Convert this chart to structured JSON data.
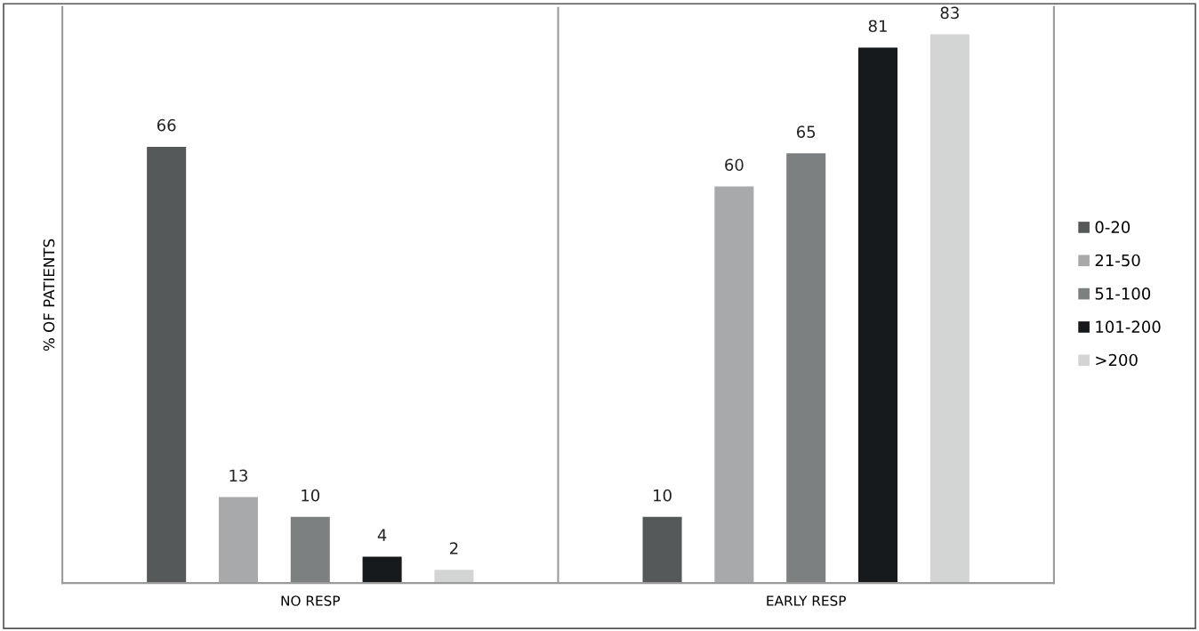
{
  "chart_data": {
    "type": "bar",
    "ylabel": "% OF PATIENTS",
    "categories": [
      "NO RESP",
      "EARLY RESP"
    ],
    "series": [
      {
        "name": "0-20",
        "color": "#555859",
        "values": [
          66,
          10
        ]
      },
      {
        "name": "21-50",
        "color": "#a7a9aa",
        "values": [
          13,
          60
        ]
      },
      {
        "name": "51-100",
        "color": "#7d8080",
        "values": [
          10,
          65
        ]
      },
      {
        "name": "101-200",
        "color": "#16191b",
        "values": [
          4,
          81
        ]
      },
      {
        "name": ">200",
        "color": "#d3d4d4",
        "values": [
          2,
          83
        ]
      }
    ],
    "data_labels": true,
    "legend": "right",
    "grid": false
  }
}
